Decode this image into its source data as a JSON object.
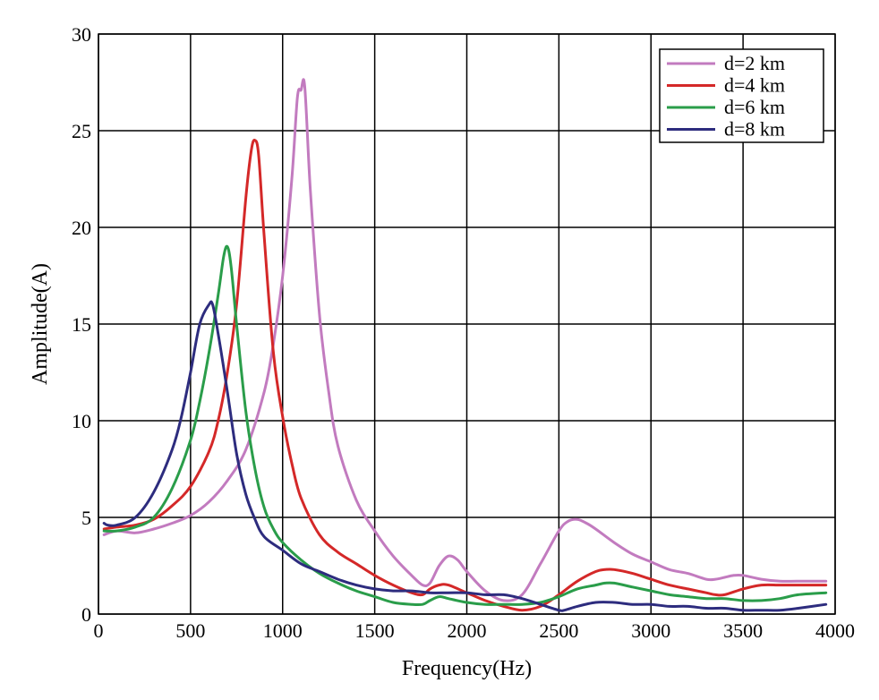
{
  "chart_data": {
    "type": "line",
    "title": "",
    "xlabel": "Frequency(Hz)",
    "ylabel": "Amplitude(A)",
    "xlim": [
      0,
      4000
    ],
    "ylim": [
      0,
      30
    ],
    "xticks": [
      0,
      500,
      1000,
      1500,
      2000,
      2500,
      3000,
      3500,
      4000
    ],
    "yticks": [
      0,
      5,
      10,
      15,
      20,
      25,
      30
    ],
    "grid": true,
    "legend_position": "top-right",
    "series": [
      {
        "name": "d=2 km",
        "color": "#c27bbf",
        "x": [
          30,
          100,
          200,
          300,
          400,
          500,
          600,
          700,
          800,
          900,
          950,
          1000,
          1050,
          1080,
          1100,
          1120,
          1150,
          1200,
          1250,
          1300,
          1400,
          1500,
          1600,
          1700,
          1760,
          1800,
          1850,
          1900,
          1950,
          2000,
          2100,
          2200,
          2300,
          2400,
          2500,
          2550,
          2600,
          2650,
          2700,
          2800,
          2900,
          3000,
          3100,
          3200,
          3300,
          3350,
          3400,
          3450,
          3500,
          3600,
          3700,
          3800,
          3950
        ],
        "y": [
          4.1,
          4.3,
          4.2,
          4.4,
          4.7,
          5.1,
          5.8,
          6.9,
          8.5,
          11.5,
          14.0,
          17.5,
          22.5,
          26.7,
          27.1,
          27.3,
          22.0,
          15.5,
          11.5,
          8.7,
          5.9,
          4.3,
          3.0,
          2.0,
          1.5,
          1.6,
          2.5,
          3.0,
          2.8,
          2.2,
          1.2,
          0.7,
          1.0,
          2.6,
          4.3,
          4.8,
          4.9,
          4.7,
          4.4,
          3.7,
          3.1,
          2.7,
          2.3,
          2.1,
          1.8,
          1.8,
          1.9,
          2.0,
          2.0,
          1.8,
          1.7,
          1.7,
          1.7
        ]
      },
      {
        "name": "d=4 km",
        "color": "#d42828",
        "x": [
          30,
          100,
          200,
          300,
          400,
          500,
          600,
          650,
          700,
          750,
          800,
          830,
          850,
          870,
          900,
          950,
          1000,
          1050,
          1100,
          1200,
          1300,
          1400,
          1500,
          1600,
          1700,
          1760,
          1800,
          1850,
          1900,
          2000,
          2100,
          2200,
          2300,
          2400,
          2500,
          2600,
          2700,
          2750,
          2800,
          2900,
          3000,
          3100,
          3200,
          3300,
          3350,
          3400,
          3500,
          3600,
          3700,
          3800,
          3950
        ],
        "y": [
          4.4,
          4.5,
          4.6,
          4.9,
          5.6,
          6.6,
          8.4,
          10.0,
          12.5,
          16.0,
          21.5,
          24.0,
          24.5,
          23.7,
          19.5,
          13.5,
          10.2,
          7.8,
          6.0,
          4.1,
          3.2,
          2.6,
          2.0,
          1.5,
          1.1,
          1.0,
          1.3,
          1.5,
          1.5,
          1.1,
          0.7,
          0.4,
          0.2,
          0.4,
          1.0,
          1.7,
          2.2,
          2.3,
          2.3,
          2.1,
          1.8,
          1.5,
          1.3,
          1.1,
          1.0,
          1.0,
          1.3,
          1.5,
          1.5,
          1.5,
          1.5
        ]
      },
      {
        "name": "d=6 km",
        "color": "#2a9d4a",
        "x": [
          30,
          100,
          200,
          300,
          400,
          500,
          550,
          600,
          650,
          680,
          700,
          720,
          750,
          800,
          850,
          900,
          950,
          1000,
          1100,
          1200,
          1300,
          1400,
          1500,
          1600,
          1700,
          1760,
          1800,
          1850,
          1900,
          2000,
          2100,
          2200,
          2300,
          2400,
          2500,
          2600,
          2700,
          2750,
          2800,
          2900,
          3000,
          3100,
          3200,
          3300,
          3400,
          3500,
          3600,
          3700,
          3800,
          3950
        ],
        "y": [
          4.3,
          4.3,
          4.5,
          5.0,
          6.5,
          9.0,
          11.0,
          13.5,
          16.5,
          18.5,
          19.0,
          18.0,
          15.0,
          10.5,
          7.5,
          5.5,
          4.4,
          3.7,
          2.8,
          2.1,
          1.6,
          1.2,
          0.9,
          0.6,
          0.5,
          0.5,
          0.7,
          0.9,
          0.8,
          0.6,
          0.5,
          0.5,
          0.5,
          0.6,
          0.9,
          1.3,
          1.5,
          1.6,
          1.6,
          1.4,
          1.2,
          1.0,
          0.9,
          0.8,
          0.8,
          0.7,
          0.7,
          0.8,
          1.0,
          1.1
        ]
      },
      {
        "name": "d=8 km",
        "color": "#2d2c7e",
        "x": [
          30,
          50,
          100,
          200,
          300,
          400,
          450,
          500,
          550,
          600,
          620,
          650,
          700,
          750,
          800,
          850,
          900,
          1000,
          1100,
          1200,
          1300,
          1400,
          1500,
          1600,
          1700,
          1800,
          1900,
          2000,
          2100,
          2200,
          2300,
          2400,
          2500,
          2530,
          2600,
          2700,
          2800,
          2900,
          3000,
          3100,
          3200,
          3300,
          3400,
          3500,
          3600,
          3700,
          3800,
          3950
        ],
        "y": [
          4.7,
          4.6,
          4.6,
          5.0,
          6.3,
          8.5,
          10.2,
          12.5,
          15.0,
          16.0,
          16.0,
          14.5,
          11.5,
          8.3,
          6.2,
          4.9,
          4.0,
          3.3,
          2.6,
          2.2,
          1.8,
          1.5,
          1.3,
          1.2,
          1.2,
          1.1,
          1.1,
          1.1,
          1.0,
          1.0,
          0.8,
          0.5,
          0.2,
          0.2,
          0.4,
          0.6,
          0.6,
          0.5,
          0.5,
          0.4,
          0.4,
          0.3,
          0.3,
          0.2,
          0.2,
          0.2,
          0.3,
          0.5
        ]
      }
    ]
  }
}
